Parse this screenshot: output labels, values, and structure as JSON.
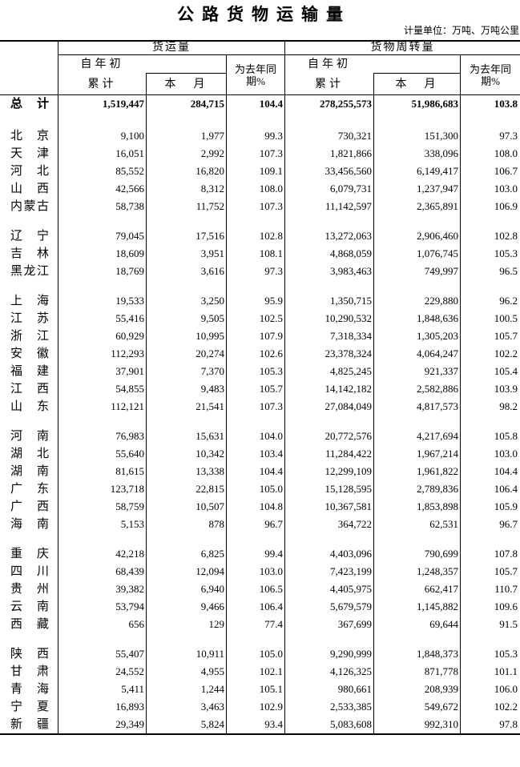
{
  "page": {
    "title": "公路货物运输量",
    "unit_note": "计量单位：万吨、万吨公里"
  },
  "header": {
    "group_left": "货运量",
    "group_right": "货物周转量",
    "cumulative_line1": "自年初",
    "cumulative_line2": "累计",
    "month": "本　月",
    "yoy_line1": "为去年同",
    "yoy_line2": "期%"
  },
  "table": {
    "column_keys": [
      "cum-left",
      "month-left",
      "pct-left",
      "cum-right",
      "month-right",
      "pct-right"
    ],
    "total_row": {
      "label": "总计",
      "values": [
        "1,519,447",
        "284,715",
        "104.4",
        "278,255,573",
        "51,986,683",
        "103.8"
      ]
    },
    "groups": [
      {
        "rows": [
          {
            "label": "北京",
            "values": [
              "9,100",
              "1,977",
              "99.3",
              "730,321",
              "151,300",
              "97.3"
            ]
          },
          {
            "label": "天津",
            "values": [
              "16,051",
              "2,992",
              "107.3",
              "1,821,866",
              "338,096",
              "108.0"
            ]
          },
          {
            "label": "河北",
            "values": [
              "85,552",
              "16,820",
              "109.1",
              "33,456,560",
              "6,149,417",
              "106.7"
            ]
          },
          {
            "label": "山西",
            "values": [
              "42,566",
              "8,312",
              "108.0",
              "6,079,731",
              "1,237,947",
              "103.0"
            ]
          },
          {
            "label": "内蒙古",
            "values": [
              "58,738",
              "11,752",
              "107.3",
              "11,142,597",
              "2,365,891",
              "106.9"
            ]
          }
        ]
      },
      {
        "rows": [
          {
            "label": "辽宁",
            "values": [
              "79,045",
              "17,516",
              "102.8",
              "13,272,063",
              "2,906,460",
              "102.8"
            ]
          },
          {
            "label": "吉林",
            "values": [
              "18,609",
              "3,951",
              "108.1",
              "4,868,059",
              "1,076,745",
              "105.3"
            ]
          },
          {
            "label": "黑龙江",
            "values": [
              "18,769",
              "3,616",
              "97.3",
              "3,983,463",
              "749,997",
              "96.5"
            ]
          }
        ]
      },
      {
        "rows": [
          {
            "label": "上海",
            "values": [
              "19,533",
              "3,250",
              "95.9",
              "1,350,715",
              "229,880",
              "96.2"
            ]
          },
          {
            "label": "江苏",
            "values": [
              "55,416",
              "9,505",
              "102.5",
              "10,290,532",
              "1,848,636",
              "100.5"
            ]
          },
          {
            "label": "浙江",
            "values": [
              "60,929",
              "10,995",
              "107.9",
              "7,318,334",
              "1,305,203",
              "105.7"
            ]
          },
          {
            "label": "安徽",
            "values": [
              "112,293",
              "20,274",
              "102.6",
              "23,378,324",
              "4,064,247",
              "102.2"
            ]
          },
          {
            "label": "福建",
            "values": [
              "37,901",
              "7,370",
              "105.3",
              "4,825,245",
              "921,337",
              "105.4"
            ]
          },
          {
            "label": "江西",
            "values": [
              "54,855",
              "9,483",
              "105.7",
              "14,142,182",
              "2,582,886",
              "103.9"
            ]
          },
          {
            "label": "山东",
            "values": [
              "112,121",
              "21,541",
              "107.3",
              "27,084,049",
              "4,817,573",
              "98.2"
            ]
          }
        ]
      },
      {
        "rows": [
          {
            "label": "河南",
            "values": [
              "76,983",
              "15,631",
              "104.0",
              "20,772,576",
              "4,217,694",
              "105.8"
            ]
          },
          {
            "label": "湖北",
            "values": [
              "55,640",
              "10,342",
              "103.4",
              "11,284,422",
              "1,967,214",
              "103.0"
            ]
          },
          {
            "label": "湖南",
            "values": [
              "81,615",
              "13,338",
              "104.4",
              "12,299,109",
              "1,961,822",
              "104.4"
            ]
          },
          {
            "label": "广东",
            "values": [
              "123,718",
              "22,815",
              "105.0",
              "15,128,595",
              "2,789,836",
              "106.4"
            ]
          },
          {
            "label": "广西",
            "values": [
              "58,759",
              "10,507",
              "104.8",
              "10,367,581",
              "1,853,898",
              "105.9"
            ]
          },
          {
            "label": "海南",
            "values": [
              "5,153",
              "878",
              "96.7",
              "364,722",
              "62,531",
              "96.7"
            ]
          }
        ]
      },
      {
        "rows": [
          {
            "label": "重庆",
            "values": [
              "42,218",
              "6,825",
              "99.4",
              "4,403,096",
              "790,699",
              "107.8"
            ]
          },
          {
            "label": "四川",
            "values": [
              "68,439",
              "12,094",
              "103.0",
              "7,423,199",
              "1,248,357",
              "105.7"
            ]
          },
          {
            "label": "贵州",
            "values": [
              "39,382",
              "6,940",
              "106.5",
              "4,405,975",
              "662,417",
              "110.7"
            ]
          },
          {
            "label": "云南",
            "values": [
              "53,794",
              "9,466",
              "106.4",
              "5,679,579",
              "1,145,882",
              "109.6"
            ]
          },
          {
            "label": "西藏",
            "values": [
              "656",
              "129",
              "77.4",
              "367,699",
              "69,644",
              "91.5"
            ]
          }
        ]
      },
      {
        "rows": [
          {
            "label": "陕西",
            "values": [
              "55,407",
              "10,911",
              "105.0",
              "9,290,999",
              "1,848,373",
              "105.3"
            ]
          },
          {
            "label": "甘肃",
            "values": [
              "24,552",
              "4,955",
              "102.1",
              "4,126,325",
              "871,778",
              "101.1"
            ]
          },
          {
            "label": "青海",
            "values": [
              "5,411",
              "1,244",
              "105.1",
              "980,661",
              "208,939",
              "106.0"
            ]
          },
          {
            "label": "宁夏",
            "values": [
              "16,893",
              "3,463",
              "102.9",
              "2,533,385",
              "549,672",
              "102.2"
            ]
          },
          {
            "label": "新疆",
            "values": [
              "29,349",
              "5,824",
              "93.4",
              "5,083,608",
              "992,310",
              "97.8"
            ]
          }
        ]
      }
    ]
  }
}
